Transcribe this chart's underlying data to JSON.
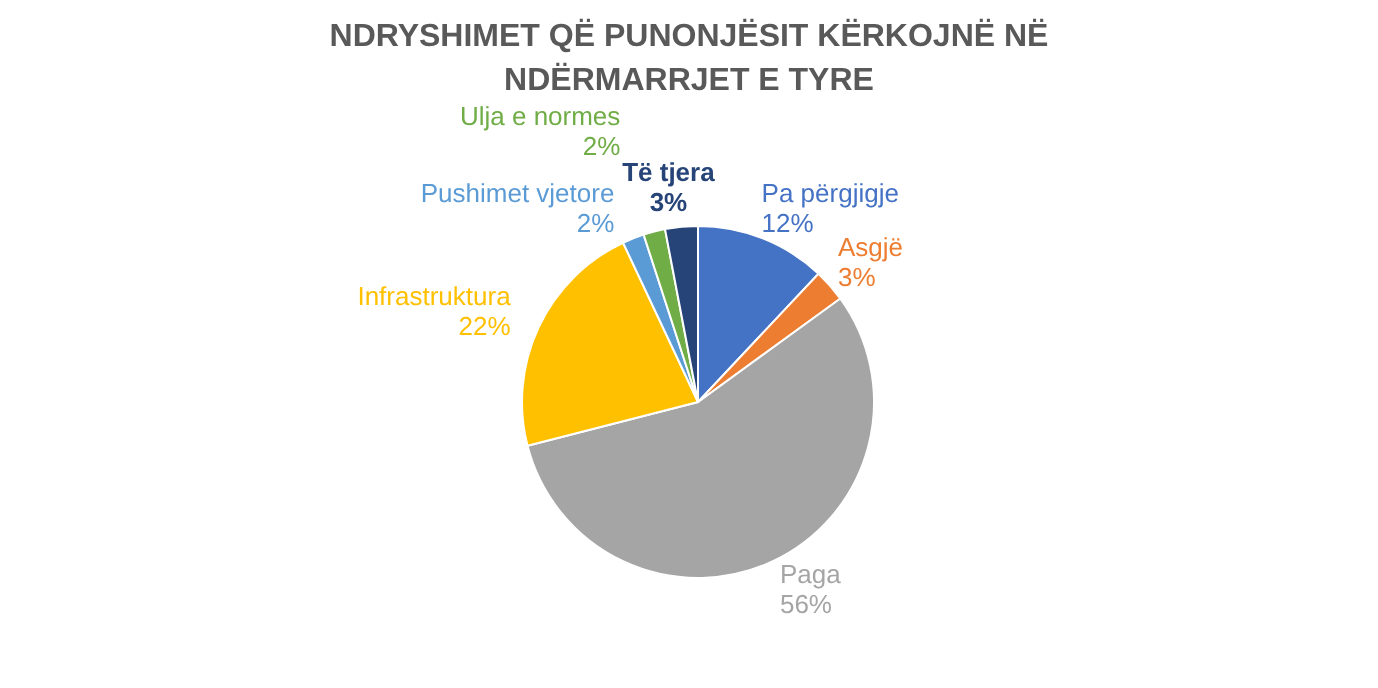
{
  "chart_data": {
    "type": "pie",
    "title": "NDRYSHIMET QË PUNONJËSIT KËRKOJNË NË NDËRMARRJET E TYRE",
    "categories": [
      "Pa përgjigje",
      "Asgjë",
      "Paga",
      "Infrastruktura",
      "Pushimet vjetore",
      "Ulja e normes",
      "Të tjera"
    ],
    "values": [
      12,
      3,
      56,
      22,
      2,
      2,
      3
    ],
    "value_labels": [
      "12%",
      "3%",
      "56%",
      "22%",
      "2%",
      "2%",
      "3%"
    ],
    "colors": [
      "#4472c4",
      "#ed7d31",
      "#a5a5a5",
      "#ffc000",
      "#5b9bd5",
      "#70ad47",
      "#264478"
    ]
  }
}
